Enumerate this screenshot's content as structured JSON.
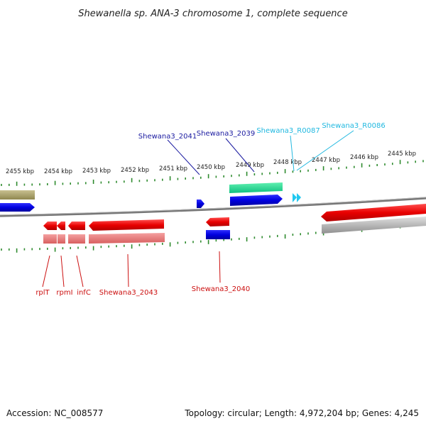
{
  "title": "Shewanella sp. ANA-3 chromosome 1, complete sequence",
  "accession": "Accession: NC_008577",
  "topology": "Topology: circular; Length: 4,972,204 bp; Genes: 4,245",
  "colors": {
    "background": "#ffffff",
    "backbone": "#8a8a8a",
    "tick": "#2e8b2e",
    "cds_forward": "#1010d8",
    "cds_reverse": "#e01010",
    "gene_reverse": "#e87a7a",
    "rna": "#20c0e0",
    "misc_green": "#20d890",
    "olive": "#a8a060",
    "grey_feature": "#b0b0b0",
    "label_blue": "#1a1aa0",
    "label_red": "#cc1010",
    "label_cyan": "#20b8e0"
  },
  "scale": {
    "unit": "kbp",
    "ticks": [
      {
        "label": "2455 kbp",
        "pos": 2455
      },
      {
        "label": "2454 kbp",
        "pos": 2454
      },
      {
        "label": "2453 kbp",
        "pos": 2453
      },
      {
        "label": "2452 kbp",
        "pos": 2452
      },
      {
        "label": "2451 kbp",
        "pos": 2451
      },
      {
        "label": "2450 kbp",
        "pos": 2450
      },
      {
        "label": "2449 kbp",
        "pos": 2449
      },
      {
        "label": "2448 kbp",
        "pos": 2448
      },
      {
        "label": "2447 kbp",
        "pos": 2447
      },
      {
        "label": "2446 kbp",
        "pos": 2446
      },
      {
        "label": "2445 kbp",
        "pos": 2445
      }
    ]
  },
  "features": {
    "forward": [
      {
        "label": "Shewana3_2041",
        "type": "cds",
        "strand": "+",
        "color": "cds_forward"
      },
      {
        "label": "Shewana3_2039",
        "type": "cds",
        "strand": "+",
        "color": "cds_forward"
      },
      {
        "label": "Shewana3_R0087",
        "type": "rna",
        "strand": "+",
        "color": "rna"
      },
      {
        "label": "Shewana3_R0086",
        "type": "rna",
        "strand": "+",
        "color": "rna"
      }
    ],
    "reverse": [
      {
        "label": "rplT",
        "type": "cds",
        "strand": "-",
        "color": "cds_reverse"
      },
      {
        "label": "rpmI",
        "type": "cds",
        "strand": "-",
        "color": "cds_reverse"
      },
      {
        "label": "infC",
        "type": "cds",
        "strand": "-",
        "color": "cds_reverse"
      },
      {
        "label": "Shewana3_2043",
        "type": "cds",
        "strand": "-",
        "color": "cds_reverse"
      },
      {
        "label": "Shewana3_2040",
        "type": "cds",
        "strand": "-",
        "color": "cds_reverse"
      }
    ]
  }
}
